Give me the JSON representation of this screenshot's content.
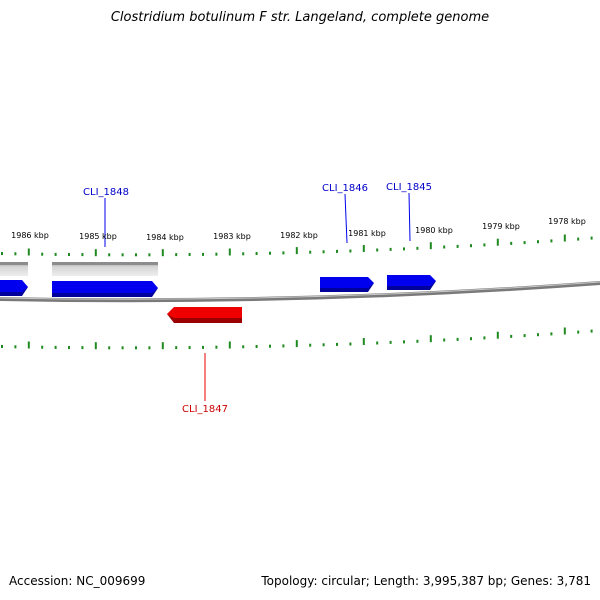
{
  "title": "Clostridium botulinum F str. Langeland, complete genome",
  "footer": {
    "accession": "Accession: NC_009699",
    "summary": "Topology: circular; Length: 3,995,387 bp; Genes: 3,781"
  },
  "colors": {
    "forward_gene": "#0000ee",
    "reverse_gene": "#ee0000",
    "other_feature": "#c4c4c4",
    "ticks": "#1f8a1f",
    "backbone": "#808080"
  },
  "scale": {
    "unit": "kbp",
    "tick_labels": [
      "1986 kbp",
      "1985 kbp",
      "1984 kbp",
      "1983 kbp",
      "1982 kbp",
      "1981 kbp",
      "1980 kbp",
      "1979 kbp",
      "1978 kbp"
    ]
  },
  "genes": [
    {
      "label": "CLI_1848",
      "strand": "forward"
    },
    {
      "label": "CLI_1846",
      "strand": "forward"
    },
    {
      "label": "CLI_1845",
      "strand": "forward"
    },
    {
      "label": "CLI_1847",
      "strand": "reverse"
    }
  ]
}
